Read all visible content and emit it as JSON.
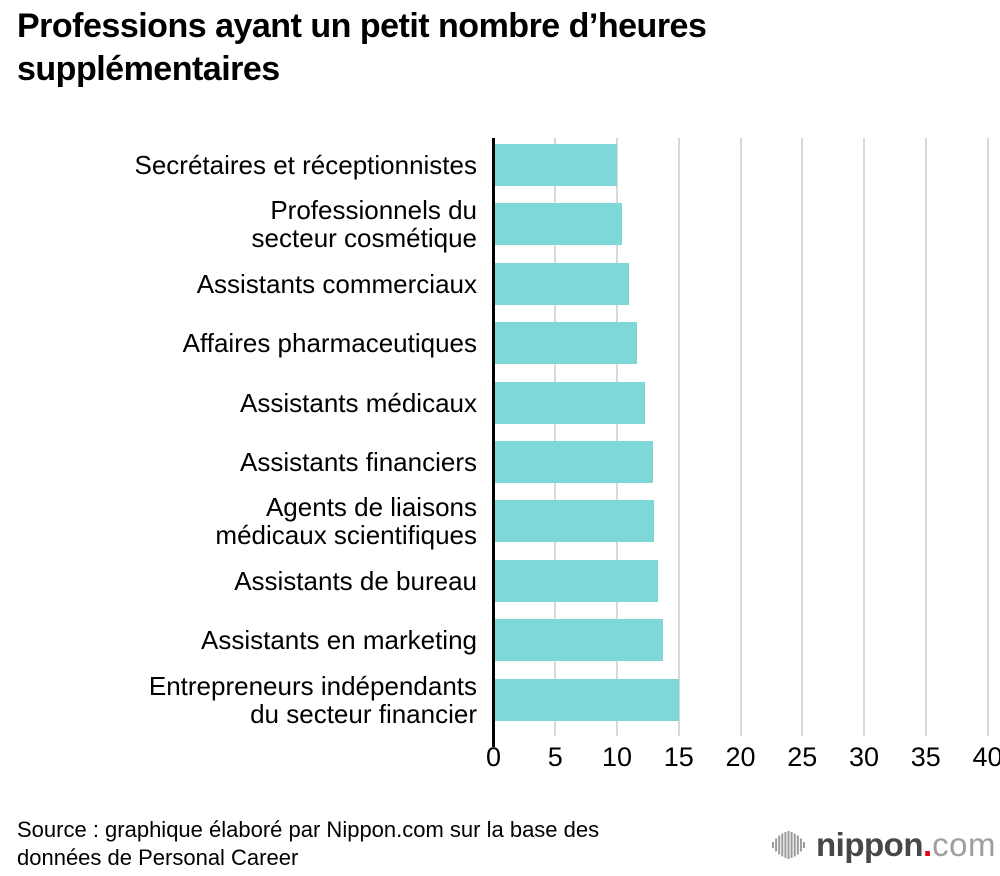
{
  "title_lines": [
    "Professions ayant un petit nombre d’heures",
    "supplémentaires"
  ],
  "chart_data": {
    "type": "bar",
    "orientation": "horizontal",
    "title": "Professions ayant un petit nombre d’heures supplémentaires",
    "categories": [
      "Secrétaires et réceptionnistes",
      "Professionnels du secteur cosmétique",
      "Assistants commerciaux",
      "Affaires pharmaceutiques",
      "Assistants médicaux",
      "Assistants financiers",
      "Agents de liaisons médicaux scientifiques",
      "Assistants de bureau",
      "Assistants en marketing",
      "Entrepreneurs indépendants du secteur financier"
    ],
    "label_lines": [
      [
        "Secrétaires et réceptionnistes"
      ],
      [
        "Professionnels du",
        "secteur cosmétique"
      ],
      [
        "Assistants commerciaux"
      ],
      [
        "Affaires pharmaceutiques"
      ],
      [
        "Assistants médicaux"
      ],
      [
        "Assistants financiers"
      ],
      [
        "Agents de liaisons",
        "médicaux scientifiques"
      ],
      [
        "Assistants de bureau"
      ],
      [
        "Assistants en marketing"
      ],
      [
        "Entrepreneurs indépendants",
        "du secteur financier"
      ]
    ],
    "values": [
      10.0,
      10.4,
      11.0,
      11.6,
      12.3,
      12.9,
      13.0,
      13.3,
      13.7,
      15.0
    ],
    "xlim": [
      0,
      40
    ],
    "x_ticks": [
      0,
      5,
      10,
      15,
      20,
      25,
      30,
      35,
      40
    ],
    "grid": "vertical",
    "legend": "none",
    "colors": {
      "bar": "#7fd8d8",
      "gridline": "#d9d9d9",
      "axis": "#000000",
      "text": "#000000",
      "background": "#ffffff"
    }
  },
  "footer": {
    "source_lines": [
      "Source : graphique élaboré par Nippon.com sur la base des",
      "données de Personal Career"
    ],
    "logo": {
      "brand": "nippon",
      "dot": ".",
      "tld": "com",
      "mark": "soundwave-icon",
      "colors": {
        "brand": "#474747",
        "dot": "#e60012",
        "tld": "#9e9e9e",
        "mark": "#9b9b9b"
      }
    }
  }
}
